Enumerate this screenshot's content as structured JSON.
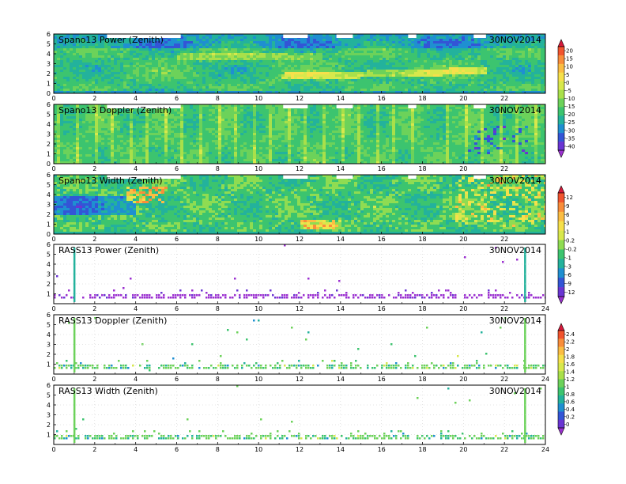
{
  "chart_data": [
    {
      "type": "heatmap",
      "title": "Spano13 Power (Zenith)",
      "date": "30NOV2014",
      "colorbar": "A",
      "xlim": [
        0,
        24
      ],
      "ylim": [
        0,
        6
      ],
      "x_ticks": [
        "0",
        "2",
        "4",
        "6",
        "8",
        "10",
        "12",
        "14",
        "16",
        "18",
        "20",
        "22"
      ],
      "y_ticks": [
        "0",
        "1",
        "2",
        "3",
        "4",
        "5",
        "6"
      ],
      "field": "power"
    },
    {
      "type": "heatmap",
      "title": "Spano13 Doppler (Zenith)",
      "date": "30NOV2014",
      "colorbar": "A",
      "xlim": [
        0,
        24
      ],
      "ylim": [
        0,
        6
      ],
      "x_ticks": [
        "0",
        "2",
        "4",
        "6",
        "8",
        "10",
        "12",
        "14",
        "16",
        "18",
        "20",
        "22"
      ],
      "y_ticks": [
        "0",
        "1",
        "2",
        "3",
        "4",
        "5",
        "6"
      ],
      "field": "doppler"
    },
    {
      "type": "heatmap",
      "title": "Spano13 Width (Zenith)",
      "date": "30NOV2014",
      "colorbar": "B",
      "xlim": [
        0,
        24
      ],
      "ylim": [
        0,
        6
      ],
      "x_ticks": [
        "0",
        "2",
        "4",
        "6",
        "8",
        "10",
        "12",
        "14",
        "16",
        "18",
        "20",
        "22"
      ],
      "y_ticks": [
        "0",
        "1",
        "2",
        "3",
        "4",
        "5",
        "6"
      ],
      "field": "width"
    },
    {
      "type": "heatmap",
      "title": "RASS13 Power (Zenith)",
      "date": "30NOV2014",
      "colorbar": "B",
      "xlim": [
        0,
        24
      ],
      "ylim": [
        0,
        6
      ],
      "x_ticks": [
        "0",
        "2",
        "4",
        "6",
        "8",
        "10",
        "12",
        "14",
        "16",
        "18",
        "20",
        "22",
        "24"
      ],
      "y_ticks": [
        "1",
        "2",
        "3",
        "4",
        "5",
        "6"
      ],
      "field": "rass_power"
    },
    {
      "type": "heatmap",
      "title": "RASS13 Doppler (Zenith)",
      "date": "30NOV2014",
      "colorbar": "C",
      "xlim": [
        0,
        24
      ],
      "ylim": [
        0,
        6
      ],
      "x_ticks": [
        "0",
        "2",
        "4",
        "6",
        "8",
        "10",
        "12",
        "14",
        "16",
        "18",
        "20",
        "22",
        "24"
      ],
      "y_ticks": [
        "1",
        "2",
        "3",
        "4",
        "5",
        "6"
      ],
      "field": "rass_doppler"
    },
    {
      "type": "heatmap",
      "title": "RASS13 Width (Zenith)",
      "date": "30NOV2014",
      "colorbar": "C",
      "xlim": [
        0,
        24
      ],
      "ylim": [
        0,
        6
      ],
      "x_ticks": [
        "0",
        "2",
        "4",
        "6",
        "8",
        "10",
        "12",
        "14",
        "16",
        "18",
        "20",
        "22",
        "24"
      ],
      "y_ticks": [
        "1",
        "2",
        "3",
        "4",
        "5",
        "6"
      ],
      "field": "rass_width"
    }
  ],
  "colorbars": {
    "A": {
      "labels": [
        "20",
        "15",
        "10",
        "5",
        "0",
        "-5",
        "-10",
        "-15",
        "-20",
        "-25",
        "-30",
        "-35",
        "-40"
      ],
      "colors": [
        "#d7193a",
        "#f2542e",
        "#f98d3a",
        "#fbbd43",
        "#f6e04b",
        "#d8e84c",
        "#a9e04a",
        "#6cd25a",
        "#3cc46f",
        "#23b29c",
        "#1f8fd1",
        "#3355d6",
        "#6a35d3",
        "#9b30d0"
      ]
    },
    "B": {
      "labels": [
        "12",
        "9",
        "6",
        "3",
        "1",
        "0.2",
        "-0.2",
        "-1",
        "-3",
        "-6",
        "-9",
        "-12"
      ],
      "colors": [
        "#d7193a",
        "#f2542e",
        "#f98d3a",
        "#fbbd43",
        "#f6e04b",
        "#d8e84c",
        "#8fdc52",
        "#3cc46f",
        "#23b29c",
        "#1f8fd1",
        "#3355d6",
        "#6a35d3",
        "#9b30d0"
      ]
    },
    "C": {
      "labels": [
        "2.4",
        "2.2",
        "2",
        "1.8",
        "1.6",
        "1.4",
        "1.2",
        "1",
        "0.8",
        "0.6",
        "0.4",
        "0.2",
        "0"
      ],
      "colors": [
        "#d7193a",
        "#f2542e",
        "#f98d3a",
        "#fbbd43",
        "#f6e04b",
        "#d8e84c",
        "#a9e04a",
        "#6cd25a",
        "#3cc46f",
        "#23b29c",
        "#1f8fd1",
        "#3355d6",
        "#6a35d3",
        "#9b30d0"
      ]
    }
  }
}
